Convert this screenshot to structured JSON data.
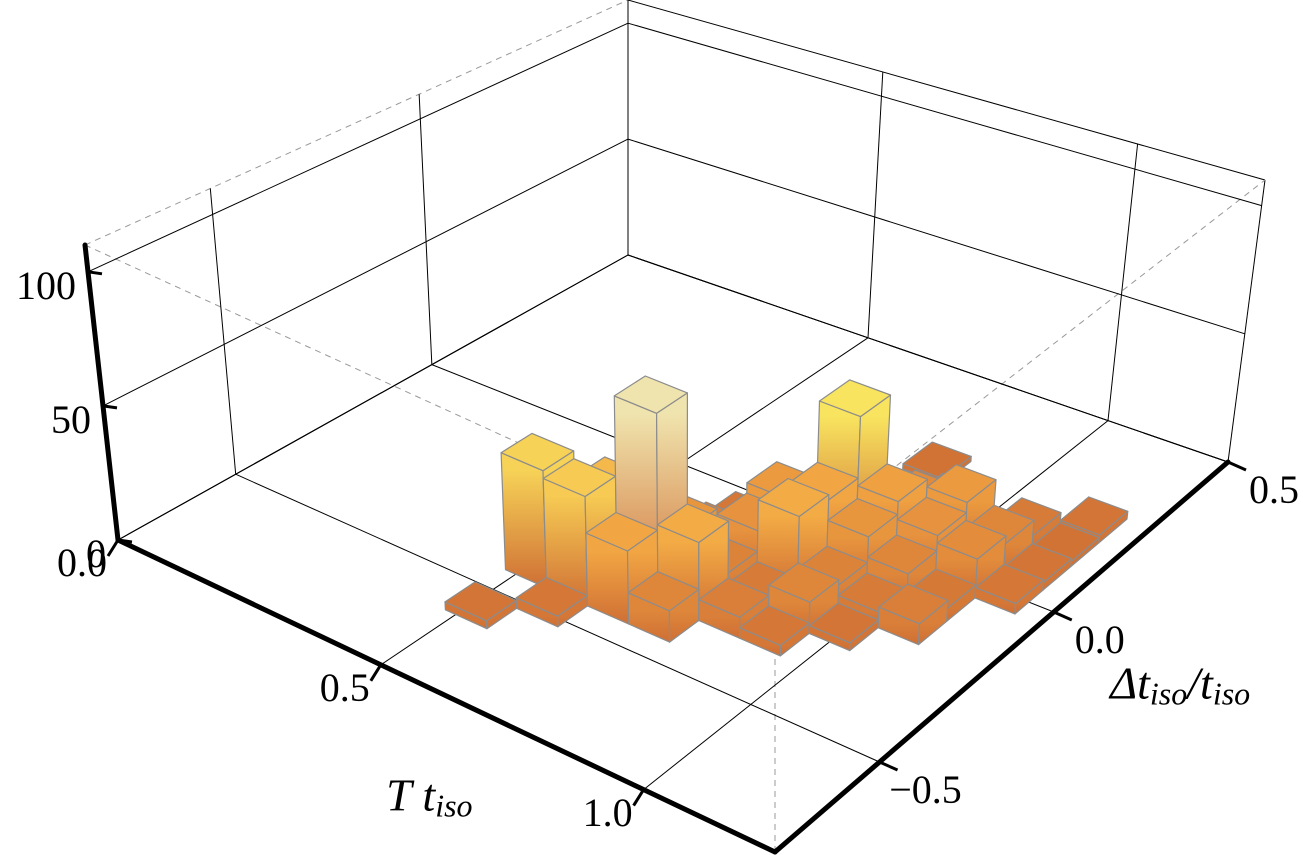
{
  "chart_data": {
    "type": "histogram3d",
    "xlabel": [
      "T t",
      "iso"
    ],
    "ylabel": [
      "Δt",
      "iso",
      "/t",
      "iso"
    ],
    "xlim": [
      0,
      1.25
    ],
    "ylim": [
      -0.8,
      0.5
    ],
    "zlim": [
      0,
      110
    ],
    "xticks": [
      {
        "value": 0,
        "label": "0.0"
      },
      0.5,
      {
        "value": 1,
        "label": "1.0"
      }
    ],
    "yticks": [
      {
        "value": -0.5,
        "label": "−0.5"
      },
      {
        "value": 0,
        "label": "0.0"
      },
      0.5
    ],
    "zticks": [
      0,
      50,
      100
    ],
    "grid": true,
    "bin_width": 0.08,
    "colormap": [
      "#cf6f35",
      "#f2a542",
      "#f9ec63",
      "#ece0d6",
      "#c4a6b8"
    ],
    "bars": [
      {
        "x": 0.48,
        "y": -0.6,
        "count": 3
      },
      {
        "x": 0.56,
        "y": -0.52,
        "count": 4
      },
      {
        "x": 0.48,
        "y": -0.44,
        "count": 45
      },
      {
        "x": 0.56,
        "y": -0.44,
        "count": 42
      },
      {
        "x": 0.64,
        "y": -0.44,
        "count": 28
      },
      {
        "x": 0.72,
        "y": -0.44,
        "count": 12
      },
      {
        "x": 0.56,
        "y": -0.36,
        "count": 35
      },
      {
        "x": 0.64,
        "y": -0.36,
        "count": 73
      },
      {
        "x": 0.72,
        "y": -0.36,
        "count": 30
      },
      {
        "x": 0.8,
        "y": -0.36,
        "count": 8
      },
      {
        "x": 0.88,
        "y": -0.36,
        "count": 4
      },
      {
        "x": 0.56,
        "y": -0.28,
        "count": 25
      },
      {
        "x": 0.64,
        "y": -0.28,
        "count": 20
      },
      {
        "x": 0.72,
        "y": -0.28,
        "count": 10
      },
      {
        "x": 0.8,
        "y": -0.28,
        "count": 6
      },
      {
        "x": 0.88,
        "y": -0.28,
        "count": 12
      },
      {
        "x": 0.96,
        "y": -0.28,
        "count": 3
      },
      {
        "x": 0.64,
        "y": -0.2,
        "count": 8
      },
      {
        "x": 0.72,
        "y": -0.2,
        "count": 18
      },
      {
        "x": 0.8,
        "y": -0.2,
        "count": 30
      },
      {
        "x": 0.88,
        "y": -0.2,
        "count": 10
      },
      {
        "x": 0.96,
        "y": -0.2,
        "count": 6
      },
      {
        "x": 1.04,
        "y": -0.2,
        "count": 8
      },
      {
        "x": 0.64,
        "y": -0.12,
        "count": 4
      },
      {
        "x": 0.72,
        "y": -0.12,
        "count": 22
      },
      {
        "x": 0.8,
        "y": -0.12,
        "count": 28
      },
      {
        "x": 0.88,
        "y": -0.12,
        "count": 20
      },
      {
        "x": 0.96,
        "y": -0.12,
        "count": 12
      },
      {
        "x": 1.04,
        "y": -0.12,
        "count": 5
      },
      {
        "x": 0.72,
        "y": -0.04,
        "count": 10
      },
      {
        "x": 0.8,
        "y": -0.04,
        "count": 52
      },
      {
        "x": 0.88,
        "y": -0.04,
        "count": 25
      },
      {
        "x": 0.96,
        "y": -0.04,
        "count": 18
      },
      {
        "x": 1.04,
        "y": -0.04,
        "count": 15
      },
      {
        "x": 1.12,
        "y": -0.04,
        "count": 4
      },
      {
        "x": 0.72,
        "y": 0.04,
        "count": 3
      },
      {
        "x": 0.8,
        "y": 0.04,
        "count": 6
      },
      {
        "x": 0.88,
        "y": 0.04,
        "count": 14
      },
      {
        "x": 0.96,
        "y": 0.04,
        "count": 22
      },
      {
        "x": 1.04,
        "y": 0.04,
        "count": 12
      },
      {
        "x": 1.12,
        "y": 0.04,
        "count": 3
      },
      {
        "x": 0.88,
        "y": 0.12,
        "count": 4
      },
      {
        "x": 1.04,
        "y": 0.12,
        "count": 6
      },
      {
        "x": 1.12,
        "y": 0.12,
        "count": 2
      },
      {
        "x": 0.8,
        "y": 0.2,
        "count": 2
      },
      {
        "x": 1.12,
        "y": 0.2,
        "count": 3
      }
    ]
  }
}
